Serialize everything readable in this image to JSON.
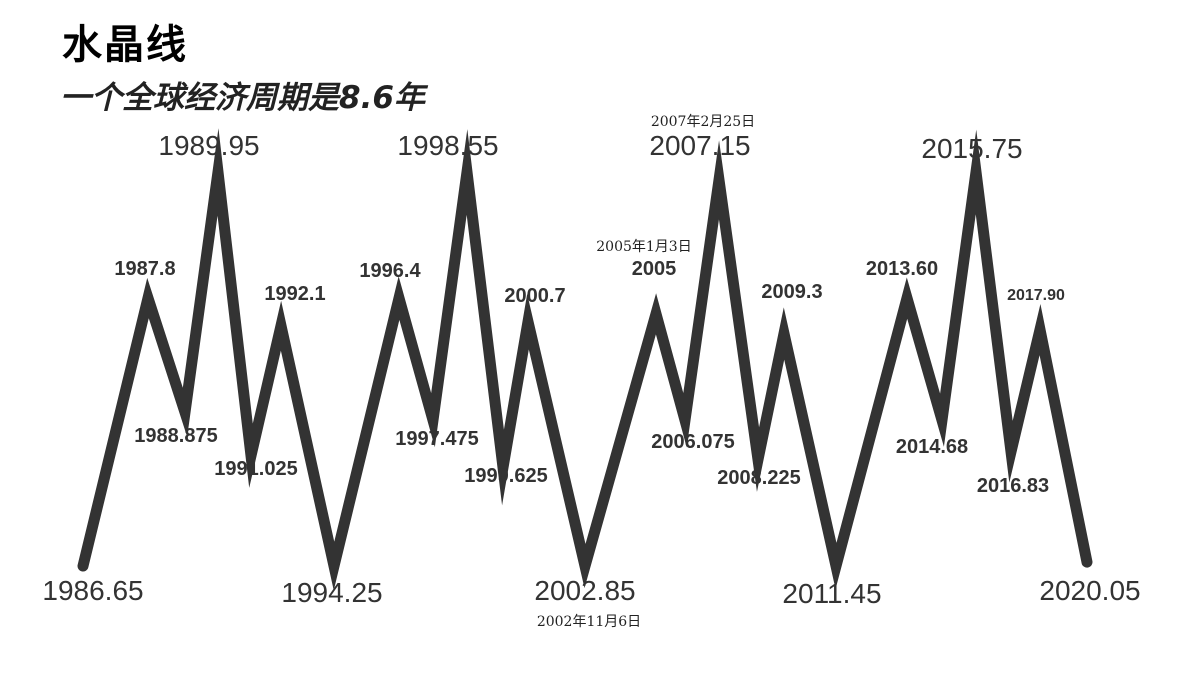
{
  "title": "水晶线",
  "subtitle": "一个全球经济周期是8.6年",
  "chart_data": {
    "type": "line",
    "title": "水晶线",
    "subtitle": "一个全球经济周期是8.6年",
    "line_color": "#333333",
    "points": [
      {
        "label": "1986.65",
        "y": 0.0
      },
      {
        "label": "1987.8",
        "y": 0.68
      },
      {
        "label": "1988.875",
        "y": 0.39
      },
      {
        "label": "1989.95",
        "y": 1.0
      },
      {
        "label": "1991.025",
        "y": 0.28
      },
      {
        "label": "1992.1",
        "y": 0.61
      },
      {
        "label": "1994.25",
        "y": 0.0
      },
      {
        "label": "1996.4",
        "y": 0.68
      },
      {
        "label": "1997.475",
        "y": 0.37
      },
      {
        "label": "1998.55",
        "y": 1.0
      },
      {
        "label": "1999.625",
        "y": 0.25
      },
      {
        "label": "2000.7",
        "y": 0.62
      },
      {
        "label": "2002.85",
        "y": 0.0
      },
      {
        "label": "2005",
        "y": 0.64
      },
      {
        "label": "2006.075",
        "y": 0.37
      },
      {
        "label": "2007.15",
        "y": 0.98
      },
      {
        "label": "2008.225",
        "y": 0.27
      },
      {
        "label": "2009.3",
        "y": 0.59
      },
      {
        "label": "2011.45",
        "y": 0.0
      },
      {
        "label": "2013.60",
        "y": 0.68
      },
      {
        "label": "2014.68",
        "y": 0.37
      },
      {
        "label": "2015.75",
        "y": 1.0
      },
      {
        "label": "2016.83",
        "y": 0.29
      },
      {
        "label": "2017.90",
        "y": 0.6
      },
      {
        "label": "2020.05",
        "y": 0.01
      }
    ],
    "annotations": [
      {
        "text": "2002年11月6日",
        "point_label": "2002.85"
      },
      {
        "text": "2005年1月3日",
        "point_label": "2005"
      },
      {
        "text": "2007年2月25日",
        "point_label": "2007.15"
      }
    ]
  }
}
